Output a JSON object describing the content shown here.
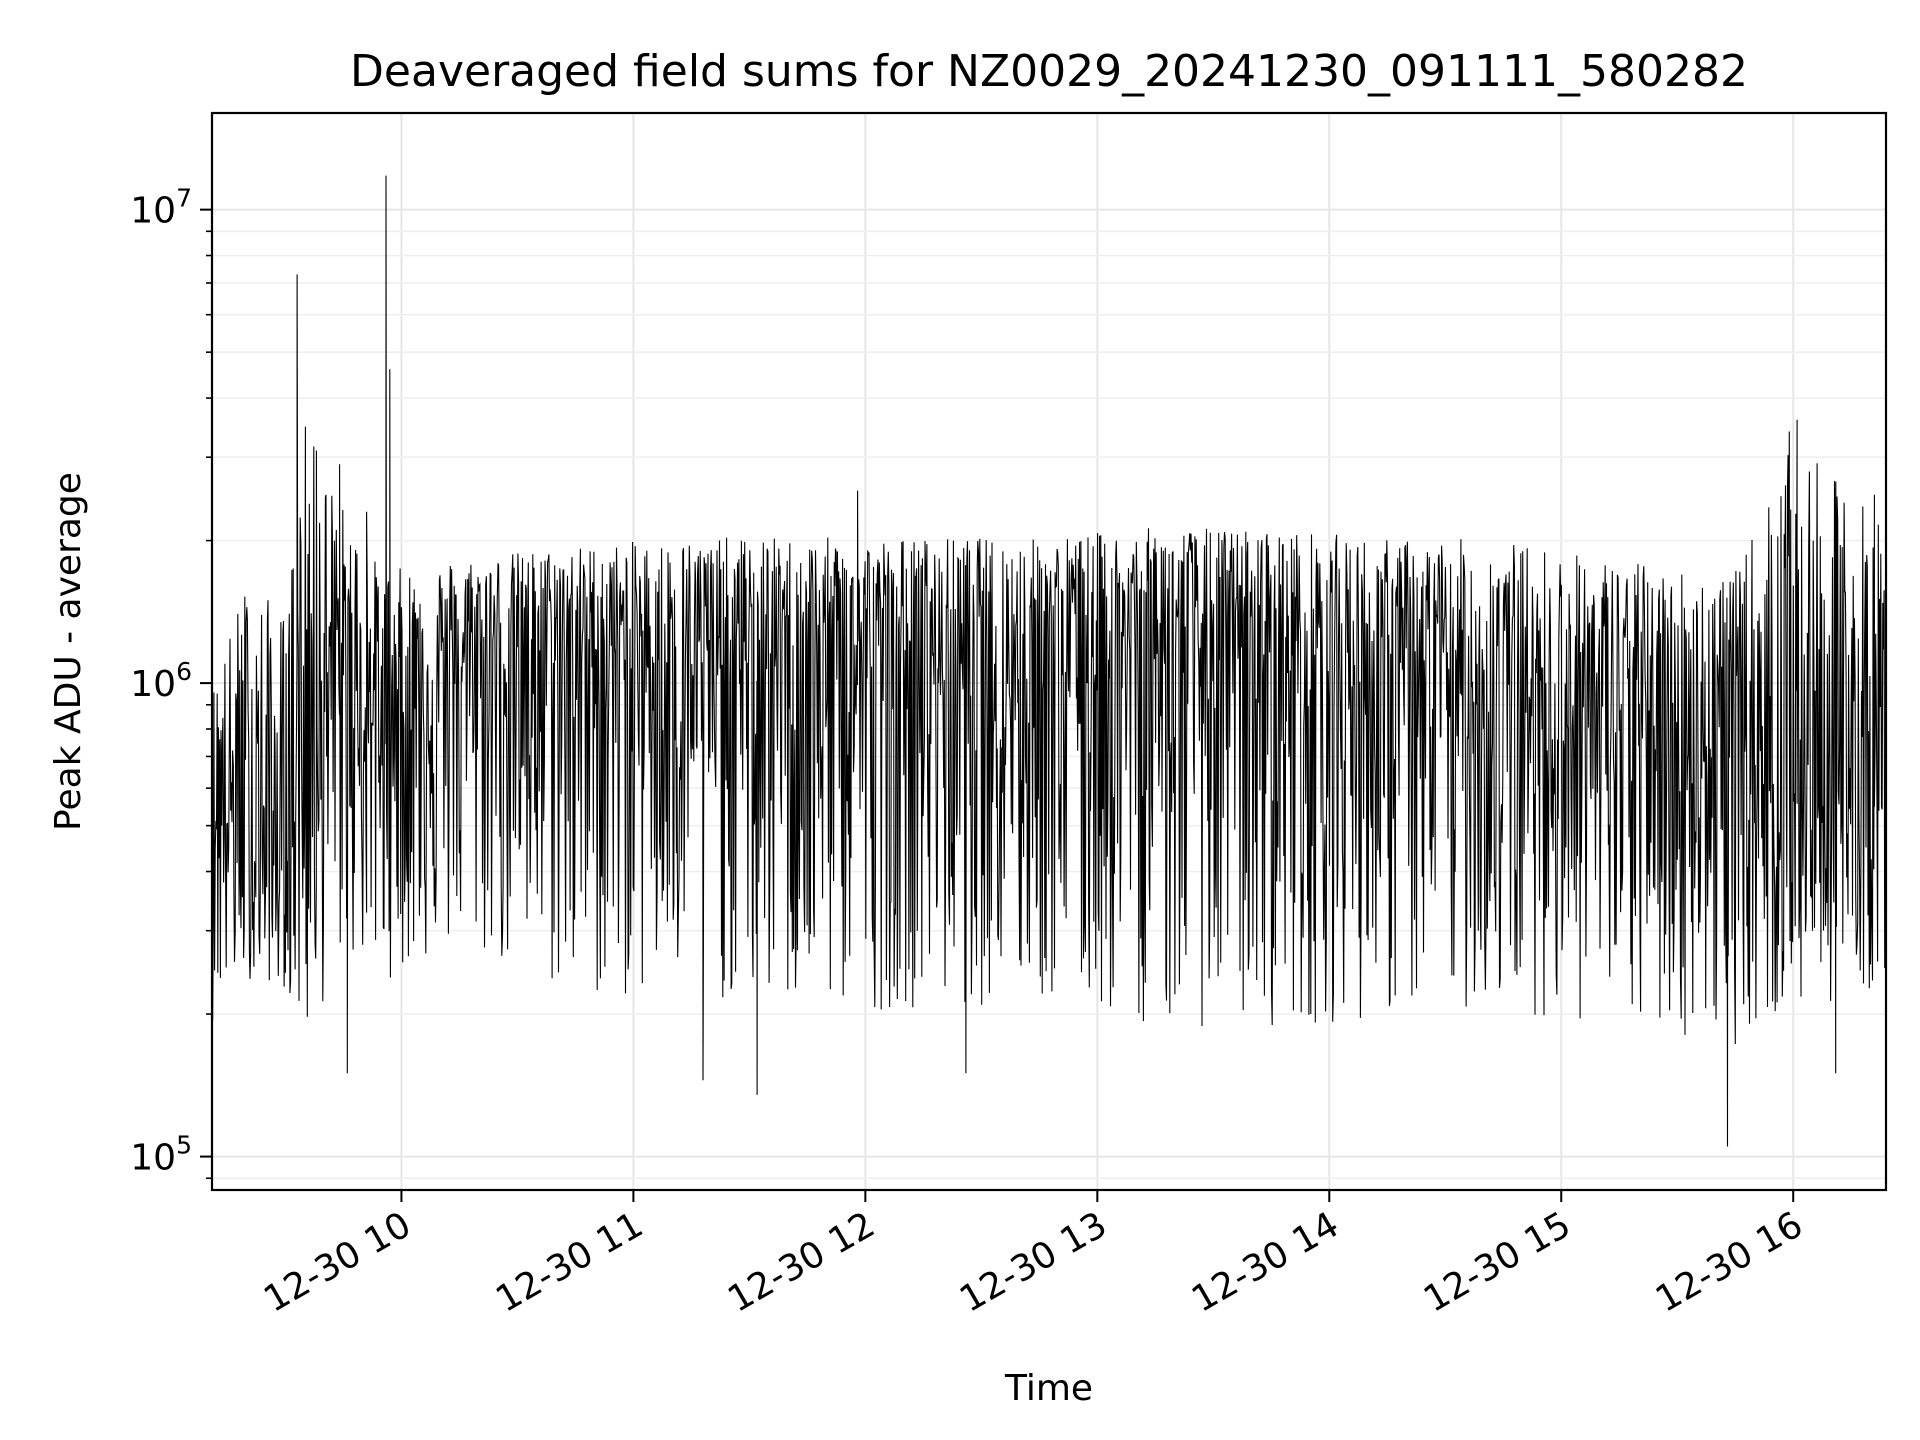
{
  "chart_data": {
    "type": "line",
    "title": "Deaveraged field sums for NZ0029_20241230_091111_580282",
    "xlabel": "Time",
    "ylabel": "Peak ADU - average",
    "x_scale": "time",
    "y_scale": "log",
    "xlim": [
      "2024-12-30 09:11",
      "2024-12-30 16:24"
    ],
    "ylim": [
      85000,
      16000000
    ],
    "x_ticks": [
      {
        "value": "2024-12-30 10:00",
        "label": "12-30 10"
      },
      {
        "value": "2024-12-30 11:00",
        "label": "12-30 11"
      },
      {
        "value": "2024-12-30 12:00",
        "label": "12-30 12"
      },
      {
        "value": "2024-12-30 13:00",
        "label": "12-30 13"
      },
      {
        "value": "2024-12-30 14:00",
        "label": "12-30 14"
      },
      {
        "value": "2024-12-30 15:00",
        "label": "12-30 15"
      },
      {
        "value": "2024-12-30 16:00",
        "label": "12-30 16"
      }
    ],
    "y_ticks": [
      {
        "value": 100000,
        "base": "10",
        "exp": "5"
      },
      {
        "value": 1000000,
        "base": "10",
        "exp": "6"
      },
      {
        "value": 10000000,
        "base": "10",
        "exp": "7"
      }
    ],
    "grid": true,
    "line_color": "#000000",
    "series_envelope": {
      "x": [
        "2024-12-30 09:11",
        "2024-12-30 09:20",
        "2024-12-30 09:30",
        "2024-12-30 09:35",
        "2024-12-30 09:45",
        "2024-12-30 09:55",
        "2024-12-30 10:15",
        "2024-12-30 10:45",
        "2024-12-30 11:15",
        "2024-12-30 11:45",
        "2024-12-30 12:15",
        "2024-12-30 12:45",
        "2024-12-30 13:15",
        "2024-12-30 13:45",
        "2024-12-30 14:15",
        "2024-12-30 14:45",
        "2024-12-30 15:15",
        "2024-12-30 15:45",
        "2024-12-30 16:00",
        "2024-12-30 16:24"
      ],
      "y_median": [
        600000,
        450000,
        400000,
        900000,
        900000,
        800000,
        1100000,
        1200000,
        1100000,
        1100000,
        1100000,
        1100000,
        1200000,
        1100000,
        1000000,
        900000,
        800000,
        700000,
        600000,
        550000
      ],
      "y_high": [
        1000000,
        1800000,
        1500000,
        3800000,
        2500000,
        1800000,
        1900000,
        2000000,
        2100000,
        2100000,
        2100000,
        2100000,
        2200000,
        2200000,
        2100000,
        2100000,
        1900000,
        1800000,
        3500000,
        2400000
      ],
      "y_low": [
        180000,
        230000,
        220000,
        150000,
        250000,
        220000,
        250000,
        190000,
        200000,
        180000,
        190000,
        190000,
        170000,
        170000,
        180000,
        190000,
        170000,
        160000,
        190000,
        220000
      ]
    },
    "notable_points": [
      {
        "x": "2024-12-30 09:33",
        "y": 7300000
      },
      {
        "x": "2024-12-30 09:38",
        "y": 3100000
      },
      {
        "x": "2024-12-30 09:44",
        "y": 2900000
      },
      {
        "x": "2024-12-30 09:46",
        "y": 150000
      },
      {
        "x": "2024-12-30 09:51",
        "y": 2300000
      },
      {
        "x": "2024-12-30 09:54",
        "y": 1600000
      },
      {
        "x": "2024-12-30 09:56",
        "y": 11800000
      },
      {
        "x": "2024-12-30 09:57",
        "y": 4600000
      },
      {
        "x": "2024-12-30 11:18",
        "y": 145000
      },
      {
        "x": "2024-12-30 11:32",
        "y": 135000
      },
      {
        "x": "2024-12-30 11:58",
        "y": 2550000
      },
      {
        "x": "2024-12-30 12:26",
        "y": 150000
      },
      {
        "x": "2024-12-30 15:43",
        "y": 105000
      },
      {
        "x": "2024-12-30 15:59",
        "y": 3400000
      },
      {
        "x": "2024-12-30 16:01",
        "y": 3600000
      },
      {
        "x": "2024-12-30 16:05",
        "y": 300000
      },
      {
        "x": "2024-12-30 16:11",
        "y": 150000
      },
      {
        "x": "2024-12-30 16:21",
        "y": 2500000
      }
    ]
  }
}
